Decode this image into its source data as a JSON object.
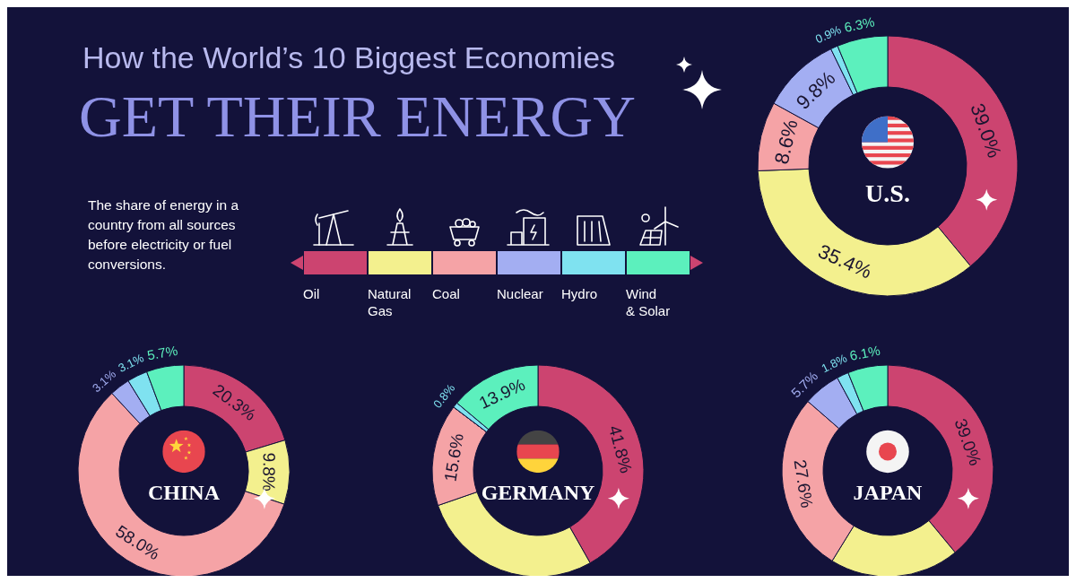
{
  "chart_data": [
    {
      "type": "other",
      "title": "How the World’s 10 Biggest Economies",
      "subtitle": "GET THEIR ENERGY",
      "annotations": [
        "The share of energy in a country from all sources before electricity or fuel conversions."
      ]
    },
    {
      "type": "donut",
      "title": "U.S.",
      "legend": "left",
      "categories": [
        "Oil",
        "Natural Gas",
        "Coal",
        "Nuclear",
        "Hydro",
        "Wind & Solar"
      ],
      "values": [
        39.0,
        35.4,
        8.6,
        9.8,
        0.9,
        6.3
      ],
      "colors": [
        "#cc4470",
        "#f3f08e",
        "#f5a3a6",
        "#a3aef2",
        "#7fe2f0",
        "#5cf0bd"
      ],
      "value_labels": [
        "39.0%",
        "35.4%",
        "8.6%",
        "9.8%",
        "0.9%",
        "6.3%"
      ]
    },
    {
      "type": "donut",
      "title": "CHINA",
      "categories": [
        null,
        null,
        null,
        null,
        null,
        null
      ],
      "values": [
        20.3,
        9.8,
        58.0,
        3.1,
        3.1,
        5.7
      ],
      "colors": [
        "#cc4470",
        "#f3f08e",
        "#f5a3a6",
        "#a3aef2",
        "#7fe2f0",
        "#5cf0bd"
      ],
      "value_labels": [
        "20.3%",
        "9.8%",
        "58.0%",
        "3.1%",
        "3.1%",
        "5.7%"
      ]
    },
    {
      "type": "donut",
      "title": "GERMANY",
      "categories": [
        null,
        null,
        null,
        null,
        null,
        null
      ],
      "values": [
        41.8,
        27.9,
        15.6,
        0,
        0.8,
        13.9
      ],
      "colors": [
        "#cc4470",
        "#f3f08e",
        "#f5a3a6",
        "#a3aef2",
        "#7fe2f0",
        "#5cf0bd"
      ],
      "value_labels": [
        "41.8%",
        null,
        "15.6%",
        null,
        "0.8%",
        "13.9%"
      ]
    },
    {
      "type": "donut",
      "title": "JAPAN",
      "categories": [
        null,
        null,
        null,
        null,
        null,
        null
      ],
      "values": [
        39.0,
        19.8,
        27.6,
        5.7,
        1.8,
        6.1
      ],
      "colors": [
        "#cc4470",
        "#f3f08e",
        "#f5a3a6",
        "#a3aef2",
        "#7fe2f0",
        "#5cf0bd"
      ],
      "value_labels": [
        "39.0%",
        null,
        "27.6%",
        "5.7%",
        "1.8%",
        "6.1%"
      ]
    }
  ]
}
